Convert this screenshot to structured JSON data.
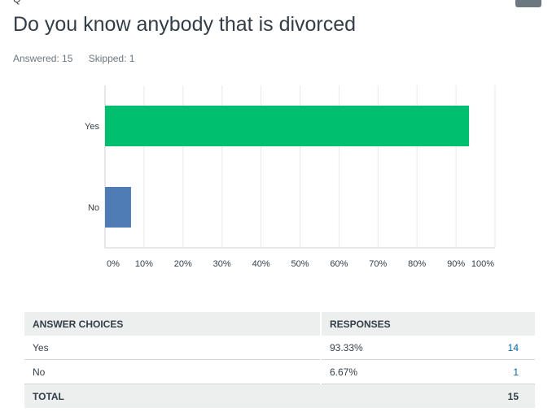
{
  "question": {
    "number": "Q",
    "title": "Do you know anybody that is divorced",
    "answered": "Answered: 15",
    "skipped": "Skipped: 1"
  },
  "chart_data": {
    "type": "bar",
    "orientation": "horizontal",
    "categories": [
      "Yes",
      "No"
    ],
    "values": [
      93.33,
      6.67
    ],
    "colors": [
      "#00bf6f",
      "#507cb6"
    ],
    "xlim": [
      0,
      100
    ],
    "xticks": [
      "0%",
      "10%",
      "20%",
      "30%",
      "40%",
      "50%",
      "60%",
      "70%",
      "80%",
      "90%",
      "100%"
    ],
    "grid": true
  },
  "table": {
    "headers": [
      "ANSWER CHOICES",
      "RESPONSES",
      ""
    ],
    "rows": [
      {
        "choice": "Yes",
        "percent": "93.33%",
        "count": "14"
      },
      {
        "choice": "No",
        "percent": "6.67%",
        "count": "1"
      }
    ],
    "total_label": "TOTAL",
    "total": "15"
  }
}
